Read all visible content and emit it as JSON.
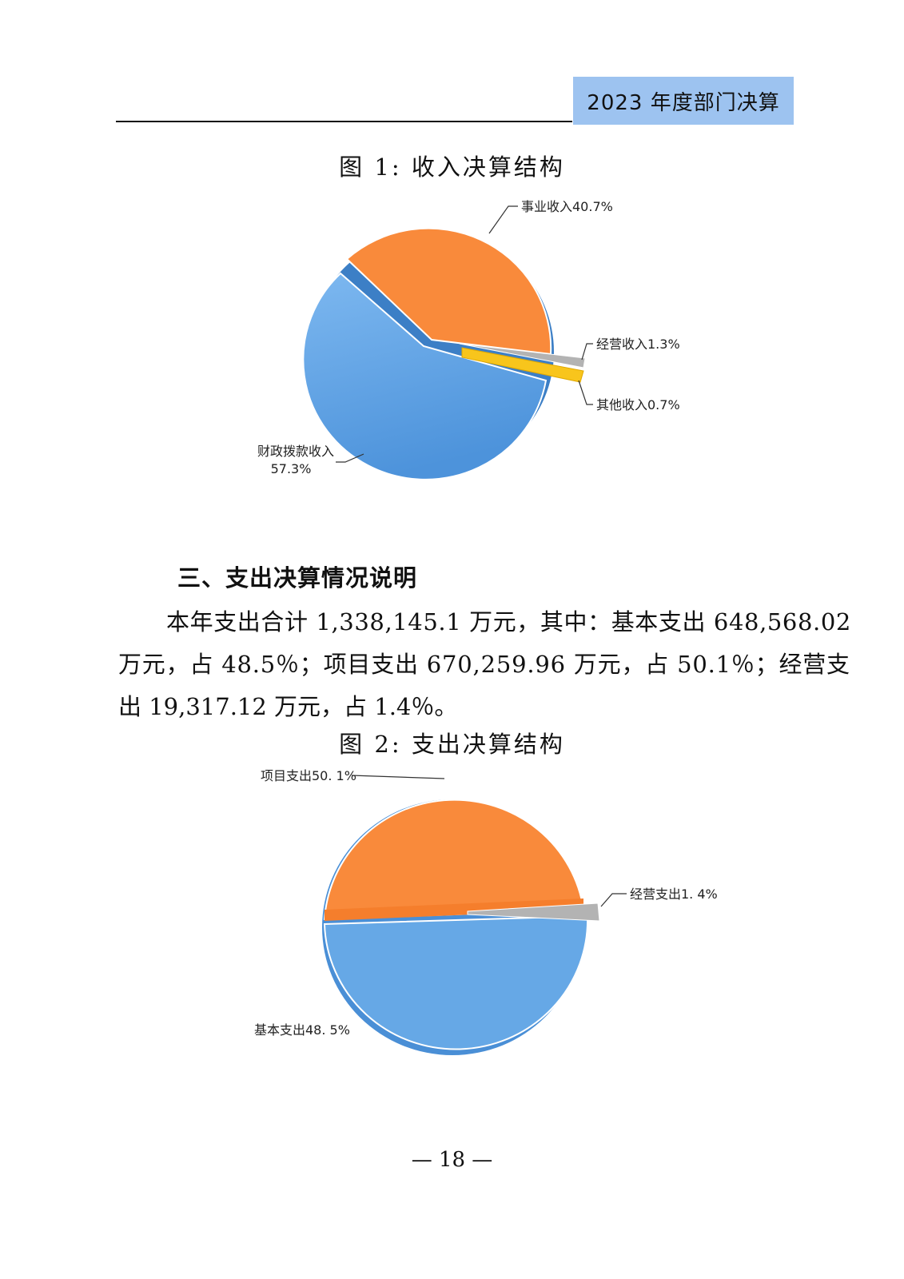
{
  "header": {
    "title": "2023 年度部门决算"
  },
  "figure1": {
    "title": "图 1:  收入决算结构",
    "chart_data": {
      "type": "pie",
      "slices": [
        {
          "label": "事业收入40.7%",
          "value": 40.7,
          "color": "#f98a3b"
        },
        {
          "label": "经营收入1.3%",
          "value": 1.3,
          "color": "#b3b3b3"
        },
        {
          "label": "其他收入0.7%",
          "value": 0.7,
          "color": "#f8c51c"
        },
        {
          "label_line1": "财政拨款收入",
          "label_line2": "57.3%",
          "value": 57.3,
          "color": "#5da3e8"
        }
      ]
    }
  },
  "section": {
    "heading": "三、支出决算情况说明",
    "lines": [
      "本年支出合计 1,338,145.1 万元，其中：基本支出 648,568.02",
      "万元，占 48.5％；项目支出 670,259.96 万元，占 50.1％；经营支",
      "出 19,317.12 万元，占 1.4％。"
    ]
  },
  "figure2": {
    "title": "图 2:  支出决算结构",
    "chart_data": {
      "type": "pie",
      "slices": [
        {
          "label": "项目支出50. 1%",
          "value": 50.1,
          "color": "#f98a3b"
        },
        {
          "label": "经营支出1. 4%",
          "value": 1.4,
          "color": "#b3b3b3"
        },
        {
          "label": "基本支出48. 5%",
          "value": 48.5,
          "color": "#66a8e6"
        }
      ]
    }
  },
  "page_number": "— 18 —"
}
